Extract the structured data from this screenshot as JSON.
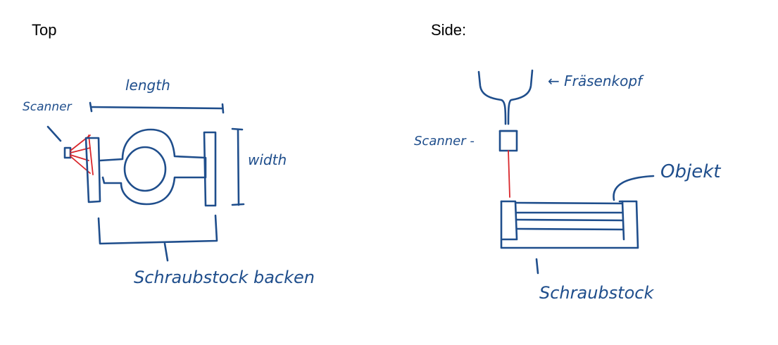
{
  "headings": {
    "top": "Top",
    "side": "Side:"
  },
  "top_view": {
    "labels": {
      "scanner": "Scanner",
      "length": "length",
      "width": "width",
      "jaws": "Schraubstock backen"
    }
  },
  "side_view": {
    "labels": {
      "mill_head": "← Fräsenkopf",
      "scanner": "Scanner -",
      "object": "Objekt",
      "vise": "Schraubstock"
    }
  },
  "colors": {
    "ink": "#1f4e8c",
    "laser": "#d9262b",
    "background": "#ffffff"
  }
}
